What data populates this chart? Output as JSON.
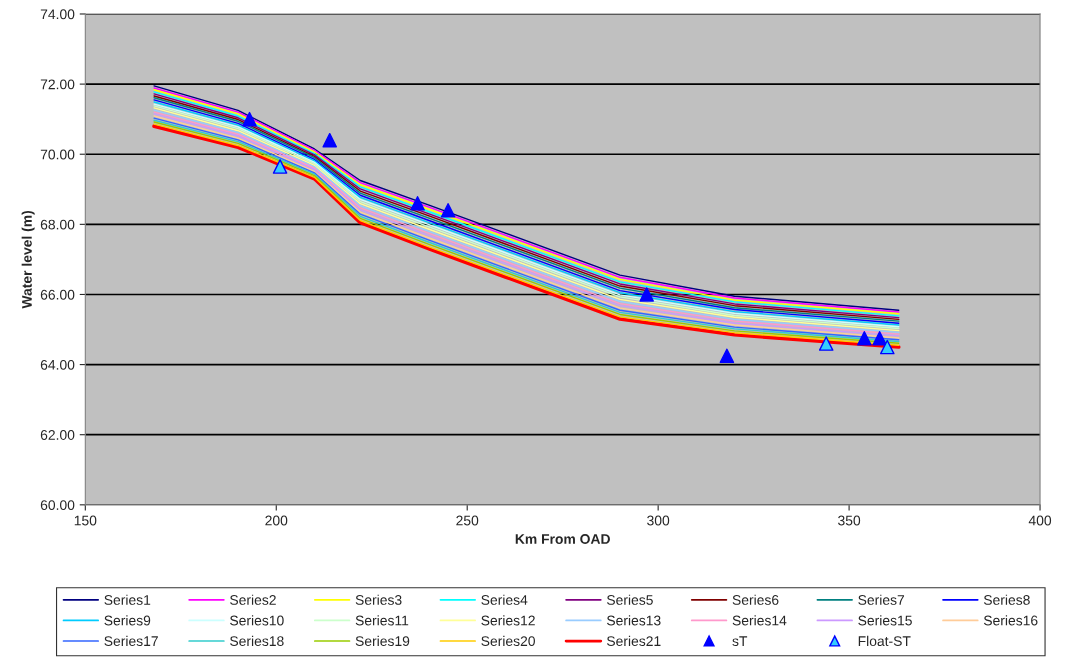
{
  "chart_data": {
    "type": "line",
    "xlabel": "Km From OAD",
    "ylabel": "Water level (m)",
    "x": [
      168,
      190,
      210,
      222,
      240,
      260,
      290,
      320,
      363
    ],
    "xlim": [
      150,
      400
    ],
    "xticks": [
      150,
      200,
      250,
      300,
      350,
      400
    ],
    "ylim": [
      60,
      74
    ],
    "yticks": [
      {
        "value": 60,
        "label": "60.00"
      },
      {
        "value": 62,
        "label": "62.00"
      },
      {
        "value": 64,
        "label": "64.00"
      },
      {
        "value": 66,
        "label": "66.00"
      },
      {
        "value": 68,
        "label": "68.00"
      },
      {
        "value": 70,
        "label": "70.00"
      },
      {
        "value": 72,
        "label": "72.00"
      },
      {
        "value": 74,
        "label": "74.00"
      }
    ],
    "grid": "y",
    "legend": "bottom",
    "marker": "none",
    "line_style": "solid",
    "series": [
      {
        "name": "Series1",
        "color": "#000080",
        "values": [
          71.95,
          71.25,
          70.15,
          69.25,
          68.55,
          67.75,
          66.55,
          65.95,
          65.55
        ]
      },
      {
        "name": "Series2",
        "color": "#ff00ff",
        "values": [
          71.89,
          71.2,
          70.11,
          69.19,
          68.49,
          67.69,
          66.49,
          65.9,
          65.5
        ]
      },
      {
        "name": "Series3",
        "color": "#ffff00",
        "values": [
          71.84,
          71.15,
          70.07,
          69.13,
          68.43,
          67.63,
          66.43,
          65.84,
          65.45
        ]
      },
      {
        "name": "Series4",
        "color": "#00ffff",
        "values": [
          71.78,
          71.09,
          70.02,
          69.07,
          68.36,
          67.56,
          66.36,
          65.79,
          65.39
        ]
      },
      {
        "name": "Series5",
        "color": "#800080",
        "values": [
          71.72,
          71.04,
          69.98,
          69.01,
          68.3,
          67.5,
          66.3,
          65.73,
          65.34
        ]
      },
      {
        "name": "Series6",
        "color": "#800000",
        "values": [
          71.66,
          70.99,
          69.94,
          68.95,
          68.24,
          67.44,
          66.24,
          65.68,
          65.29
        ]
      },
      {
        "name": "Series7",
        "color": "#008080",
        "values": [
          71.61,
          70.94,
          69.9,
          68.89,
          68.18,
          67.38,
          66.18,
          65.62,
          65.24
        ]
      },
      {
        "name": "Series8",
        "color": "#0000ff",
        "values": [
          71.55,
          70.88,
          69.85,
          68.83,
          68.11,
          67.31,
          66.11,
          65.57,
          65.18
        ]
      },
      {
        "name": "Series9",
        "color": "#00ccff",
        "values": [
          71.49,
          70.83,
          69.81,
          68.77,
          68.05,
          67.25,
          66.05,
          65.51,
          65.13
        ]
      },
      {
        "name": "Series10",
        "color": "#ccffff",
        "values": [
          71.43,
          70.78,
          69.77,
          68.71,
          67.99,
          67.19,
          65.99,
          65.46,
          65.08
        ]
      },
      {
        "name": "Series11",
        "color": "#ccffcc",
        "values": [
          71.38,
          70.73,
          69.73,
          68.65,
          67.93,
          67.13,
          65.93,
          65.4,
          65.03
        ]
      },
      {
        "name": "Series12",
        "color": "#ffff99",
        "values": [
          71.32,
          70.67,
          69.68,
          68.59,
          67.86,
          67.06,
          65.86,
          65.35,
          64.97
        ]
      },
      {
        "name": "Series13",
        "color": "#99ccff",
        "values": [
          71.26,
          70.62,
          69.64,
          68.53,
          67.8,
          67.0,
          65.8,
          65.29,
          64.92
        ]
      },
      {
        "name": "Series14",
        "color": "#ff99cc",
        "values": [
          71.2,
          70.57,
          69.6,
          68.47,
          67.74,
          66.94,
          65.74,
          65.24,
          64.87
        ]
      },
      {
        "name": "Series15",
        "color": "#cc99ff",
        "values": [
          71.15,
          70.52,
          69.56,
          68.41,
          67.68,
          66.88,
          65.68,
          65.18,
          64.82
        ]
      },
      {
        "name": "Series16",
        "color": "#ffcc99",
        "values": [
          71.09,
          70.46,
          69.51,
          68.35,
          67.61,
          66.81,
          65.61,
          65.13,
          64.76
        ]
      },
      {
        "name": "Series17",
        "color": "#3366ff",
        "values": [
          71.03,
          70.41,
          69.47,
          68.29,
          67.55,
          66.75,
          65.55,
          65.07,
          64.71
        ]
      },
      {
        "name": "Series18",
        "color": "#33cccc",
        "values": [
          70.97,
          70.36,
          69.43,
          68.23,
          67.49,
          66.69,
          65.49,
          65.02,
          64.66
        ]
      },
      {
        "name": "Series19",
        "color": "#99cc00",
        "values": [
          70.92,
          70.31,
          69.39,
          68.17,
          67.43,
          66.63,
          65.43,
          64.96,
          64.61
        ]
      },
      {
        "name": "Series20",
        "color": "#ffcc00",
        "values": [
          70.86,
          70.25,
          69.34,
          68.11,
          67.36,
          66.56,
          65.36,
          64.91,
          64.55
        ]
      },
      {
        "name": "Series21",
        "color": "#ff0000",
        "values": [
          70.8,
          70.2,
          69.3,
          68.05,
          67.3,
          66.5,
          65.3,
          64.85,
          64.5
        ]
      },
      {
        "name": "sT",
        "type": "scatter",
        "marker": "triangle",
        "color": "#0000ff",
        "x": [
          193,
          214,
          237,
          245,
          297,
          318,
          354,
          358
        ],
        "values": [
          71.0,
          70.4,
          68.6,
          68.4,
          66.0,
          64.25,
          64.75,
          64.75
        ]
      },
      {
        "name": "Float-ST",
        "type": "scatter",
        "marker": "triangle",
        "color": "#33ccff",
        "x": [
          201,
          344,
          360
        ],
        "values": [
          69.65,
          64.6,
          64.5
        ]
      }
    ]
  }
}
